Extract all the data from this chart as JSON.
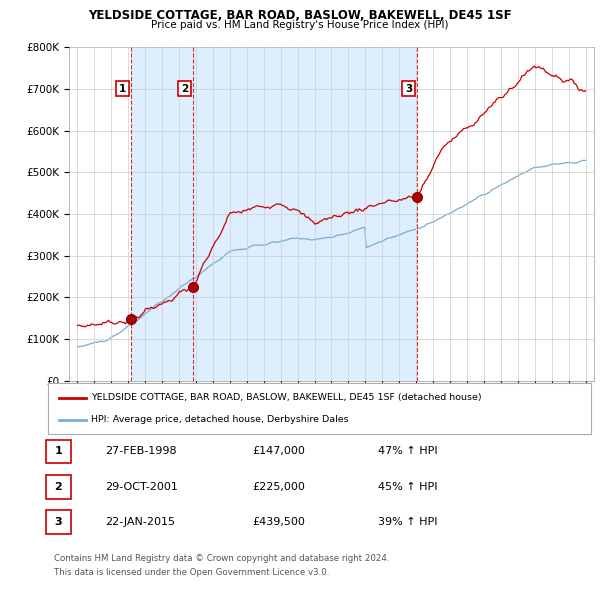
{
  "title": "YELDSIDE COTTAGE, BAR ROAD, BASLOW, BAKEWELL, DE45 1SF",
  "subtitle": "Price paid vs. HM Land Registry's House Price Index (HPI)",
  "ylim": [
    0,
    800000
  ],
  "yticks": [
    0,
    100000,
    200000,
    300000,
    400000,
    500000,
    600000,
    700000,
    800000
  ],
  "ytick_labels": [
    "£0",
    "£100K",
    "£200K",
    "£300K",
    "£400K",
    "£500K",
    "£600K",
    "£700K",
    "£800K"
  ],
  "red_line_color": "#cc0000",
  "blue_line_color": "#7aacce",
  "shade_color": "#ddeeff",
  "sale_label_border": "#cc0000",
  "grid_color": "#cccccc",
  "background_color": "#ffffff",
  "purchases": [
    {
      "label": "1",
      "date_num": 1998.15,
      "price": 147000
    },
    {
      "label": "2",
      "date_num": 2001.83,
      "price": 225000
    },
    {
      "label": "3",
      "date_num": 2015.06,
      "price": 439500
    }
  ],
  "legend_line1": "YELDSIDE COTTAGE, BAR ROAD, BASLOW, BAKEWELL, DE45 1SF (detached house)",
  "legend_line2": "HPI: Average price, detached house, Derbyshire Dales",
  "table_rows": [
    [
      "1",
      "27-FEB-1998",
      "£147,000",
      "47% ↑ HPI"
    ],
    [
      "2",
      "29-OCT-2001",
      "£225,000",
      "45% ↑ HPI"
    ],
    [
      "3",
      "22-JAN-2015",
      "£439,500",
      "39% ↑ HPI"
    ]
  ],
  "footnote1": "Contains HM Land Registry data © Crown copyright and database right 2024.",
  "footnote2": "This data is licensed under the Open Government Licence v3.0.",
  "xmin": 1994.5,
  "xmax": 2025.5
}
